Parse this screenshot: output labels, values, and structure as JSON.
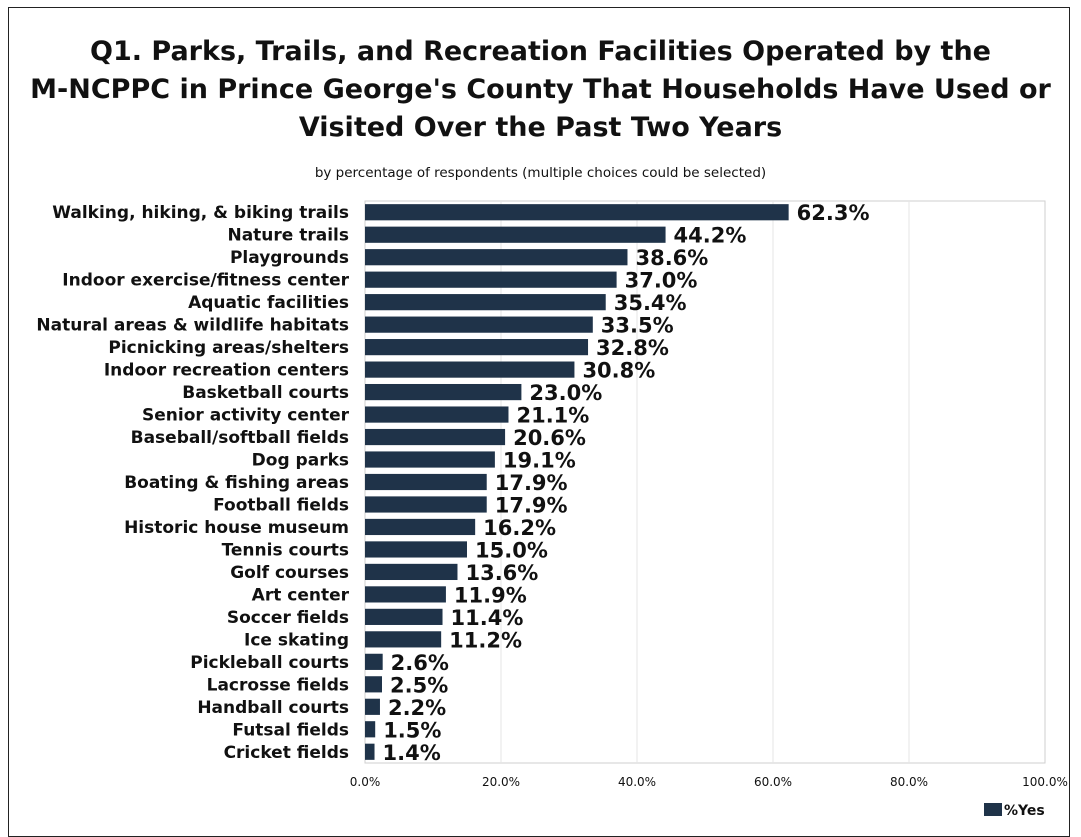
{
  "title_lines": [
    "Q1. Parks, Trails, and Recreation Facilities Operated by the",
    "M-NCPPC in Prince George's County That Households Have Used or",
    "Visited Over the Past Two Years"
  ],
  "subtitle": "by percentage of respondents (multiple choices could be selected)",
  "chart_data": {
    "type": "bar",
    "orientation": "horizontal",
    "categories": [
      "Walking, hiking, & biking trails",
      "Nature trails",
      "Playgrounds",
      "Indoor exercise/fitness center",
      "Aquatic facilities",
      "Natural areas & wildlife habitats",
      "Picnicking areas/shelters",
      "Indoor recreation centers",
      "Basketball courts",
      "Senior activity center",
      "Baseball/softball fields",
      "Dog parks",
      "Boating & fishing areas",
      "Football fields",
      "Historic house museum",
      "Tennis courts",
      "Golf courses",
      "Art center",
      "Soccer fields",
      "Ice skating",
      "Pickleball courts",
      "Lacrosse fields",
      "Handball courts",
      "Futsal fields",
      "Cricket fields"
    ],
    "series": [
      {
        "name": "%Yes",
        "values": [
          62.3,
          44.2,
          38.6,
          37.0,
          35.4,
          33.5,
          32.8,
          30.8,
          23.0,
          21.1,
          20.6,
          19.1,
          17.9,
          17.9,
          16.2,
          15.0,
          13.6,
          11.9,
          11.4,
          11.2,
          2.6,
          2.5,
          2.2,
          1.5,
          1.4
        ],
        "labels": [
          "62.3%",
          "44.2%",
          "38.6%",
          "37.0%",
          "35.4%",
          "33.5%",
          "32.8%",
          "30.8%",
          "23.0%",
          "21.1%",
          "20.6%",
          "19.1%",
          "17.9%",
          "17.9%",
          "16.2%",
          "15.0%",
          "13.6%",
          "11.9%",
          "11.4%",
          "11.2%",
          "2.6%",
          "2.5%",
          "2.2%",
          "1.5%",
          "1.4%"
        ]
      }
    ],
    "xlim": [
      0,
      100
    ],
    "x_ticks": [
      0,
      20,
      40,
      60,
      80,
      100
    ],
    "x_tick_labels": [
      "0.0%",
      "20.0%",
      "40.0%",
      "60.0%",
      "80.0%",
      "100.0%"
    ],
    "bar_color": "#1f3349",
    "grid": true,
    "legend_position": "bottom-right"
  }
}
